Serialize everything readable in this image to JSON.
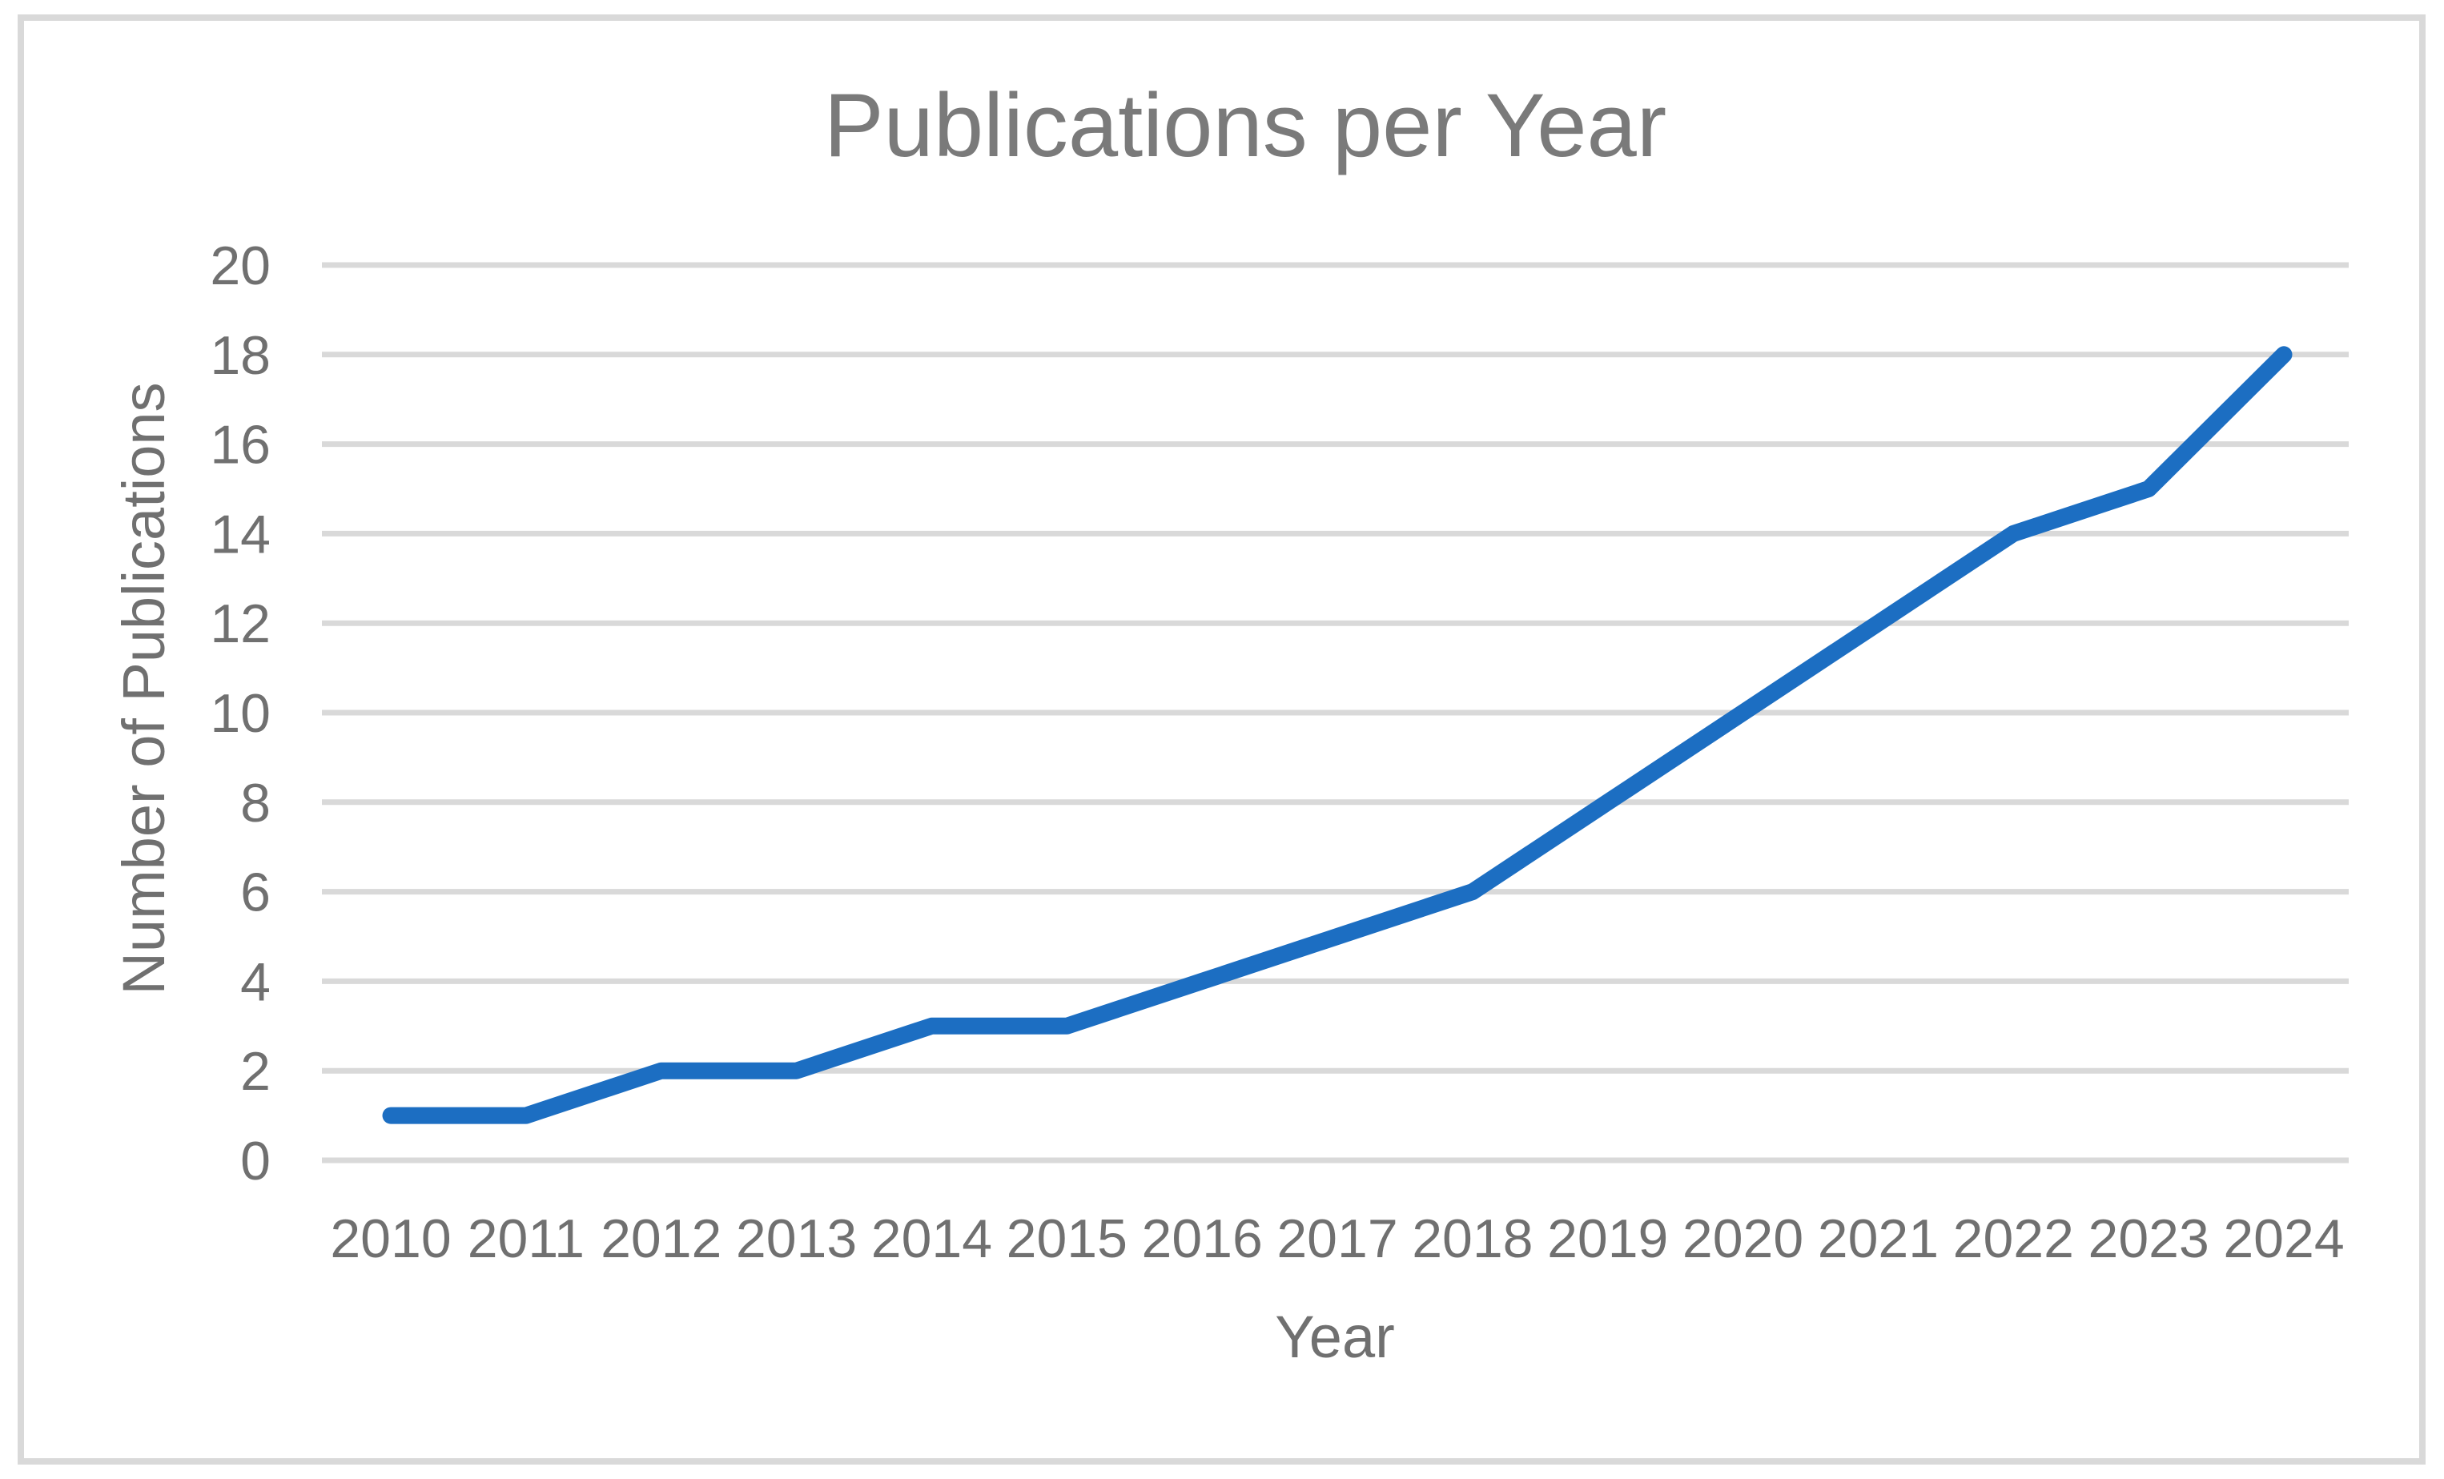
{
  "chart_data": {
    "type": "line",
    "title": "Publications per Year",
    "xlabel": "Year",
    "ylabel": "Number of Publications",
    "categories": [
      "2010",
      "2011",
      "2012",
      "2013",
      "2014",
      "2015",
      "2016",
      "2017",
      "2018",
      "2019",
      "2020",
      "2021",
      "2022",
      "2023",
      "2024"
    ],
    "series": [
      {
        "name": "Publications",
        "values": [
          1,
          1,
          2,
          2,
          3,
          3,
          4,
          5,
          6,
          8,
          10,
          12,
          14,
          15,
          18
        ]
      }
    ],
    "ylim": [
      0,
      20
    ],
    "yticks": [
      0,
      2,
      4,
      6,
      8,
      10,
      12,
      14,
      16,
      18,
      20
    ],
    "grid": "horizontal",
    "legend": "none"
  },
  "colors": {
    "line": "#1C6EC2",
    "gridline": "#D9D9D9",
    "frame": "#D9D9D9",
    "axis_text": "#707070",
    "title_text": "#7A7A7A",
    "background": "#FFFFFF"
  }
}
